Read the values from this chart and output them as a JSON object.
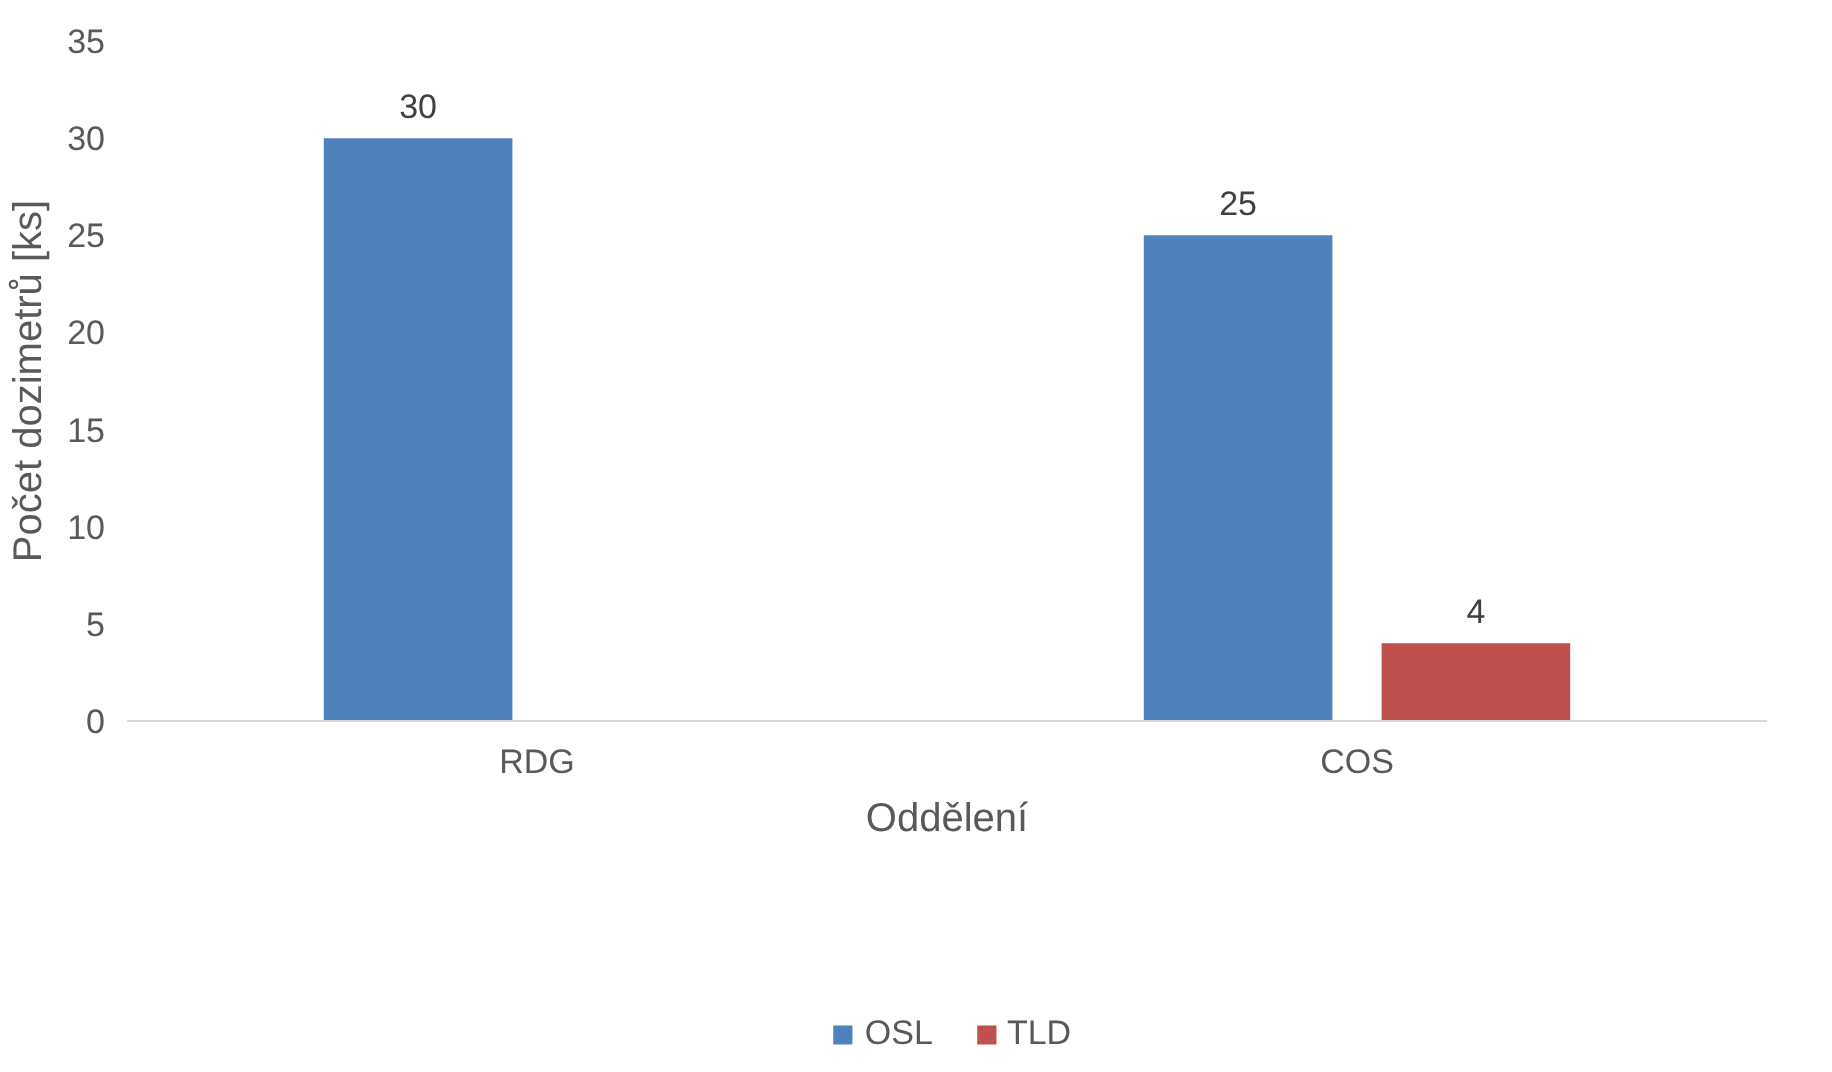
{
  "chart_data": {
    "type": "bar",
    "xlabel": "Oddělení",
    "ylabel": "Počet dozimetrů [ks]",
    "categories": [
      "RDG",
      "COS"
    ],
    "series": [
      {
        "name": "OSL",
        "color": "#4f81bd",
        "values": [
          30,
          25
        ]
      },
      {
        "name": "TLD",
        "color": "#c0504d",
        "values": [
          null,
          4
        ]
      }
    ],
    "ylim": [
      0,
      35
    ],
    "yticks": [
      0,
      5,
      10,
      15,
      20,
      25,
      30,
      35
    ],
    "grid": false,
    "legend": "bottom",
    "data_labels": true
  }
}
